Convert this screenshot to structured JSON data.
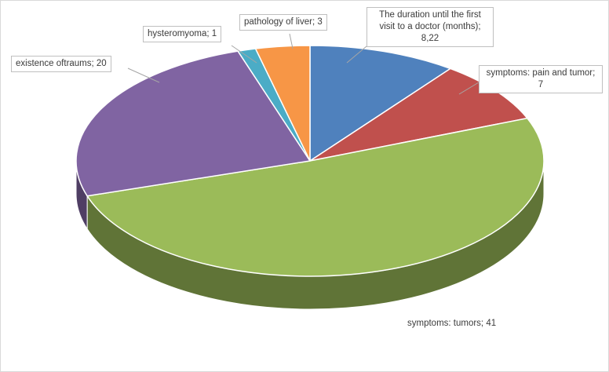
{
  "chart_data": {
    "type": "pie",
    "style": "3d",
    "title": "",
    "legend_position": "none",
    "start_angle_deg": 0,
    "direction": "clockwise",
    "total": 80.22,
    "slices": [
      {
        "label": "The duration until the first visit to a doctor (months)",
        "value": 8.22,
        "display": "The duration until the first visit to a doctor (months); 8,22",
        "color": "#4F81BD"
      },
      {
        "label": "symptoms: pain and tumor",
        "value": 7,
        "display": "symptoms: pain and tumor; 7",
        "color": "#C0504D"
      },
      {
        "label": "symptoms: tumors",
        "value": 41,
        "display": "symptoms: tumors; 41",
        "color": "#9BBB59"
      },
      {
        "label": "existence oftraums",
        "value": 20,
        "display": "existence oftraums; 20",
        "color": "#8064A2"
      },
      {
        "label": "hysteromyoma",
        "value": 1,
        "display": "hysteromyoma; 1",
        "color": "#4BACC6"
      },
      {
        "label": "pathology of liver",
        "value": 3,
        "display": "pathology of liver; 3",
        "color": "#F79646"
      }
    ],
    "colors_note": {
      "leader_line": "#a6a6a6",
      "label_border": "#bfbfbf",
      "chart_border": "#d9d9d9",
      "background": "#ffffff"
    }
  }
}
